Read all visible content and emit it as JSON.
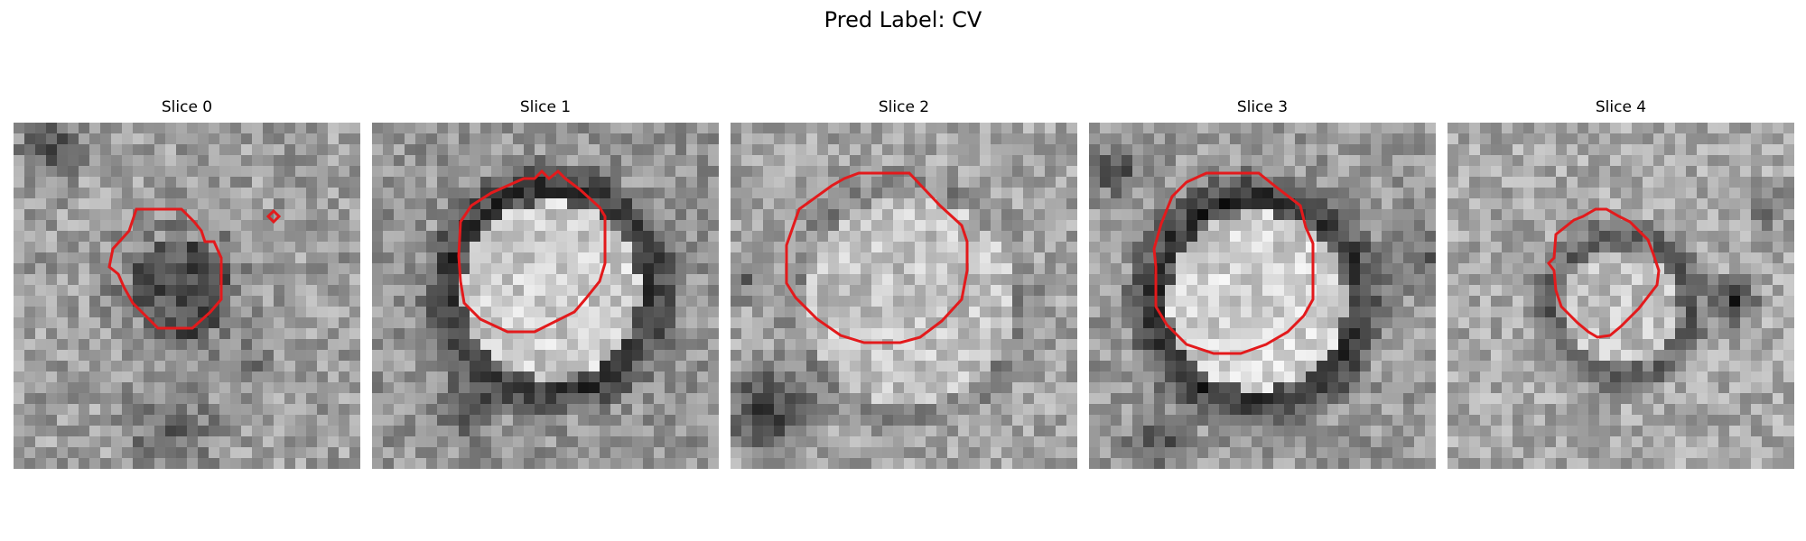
{
  "figure": {
    "title": "Pred Label: CV"
  },
  "panels": [
    {
      "title": "Slice 0"
    },
    {
      "title": "Slice 1"
    },
    {
      "title": "Slice 2"
    },
    {
      "title": "Slice 3"
    },
    {
      "title": "Slice 4"
    }
  ],
  "colors": {
    "contour": "#e31a1c",
    "background": "#ffffff"
  }
}
